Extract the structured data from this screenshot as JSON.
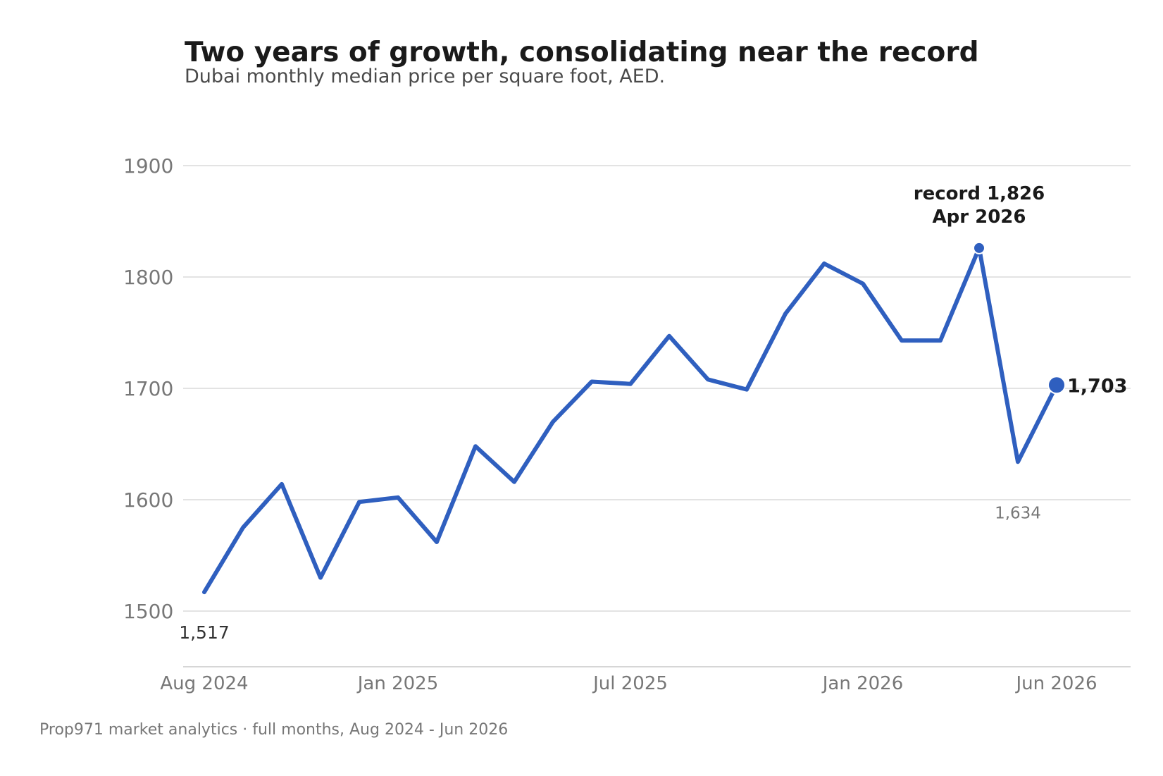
{
  "chart_data": {
    "type": "line",
    "title": "Two years of growth, consolidating near the record",
    "subtitle": "Dubai monthly median price per square foot, AED.",
    "footer": "Prop971 market analytics  ·  full months, Aug 2024 - Jun 2026",
    "colors": {
      "series": "#2f5fbf"
    },
    "x": [
      "2024-08",
      "2024-09",
      "2024-10",
      "2024-11",
      "2024-12",
      "2025-01",
      "2025-02",
      "2025-03",
      "2025-04",
      "2025-05",
      "2025-06",
      "2025-07",
      "2025-08",
      "2025-09",
      "2025-10",
      "2025-11",
      "2025-12",
      "2026-01",
      "2026-02",
      "2026-03",
      "2026-04",
      "2026-05",
      "2026-06"
    ],
    "series": [
      {
        "values": [
          1517,
          1575,
          1614,
          1530,
          1598,
          1602,
          1562,
          1648,
          1616,
          1670,
          1706,
          1704,
          1747,
          1708,
          1699,
          1767,
          1812,
          1794,
          1743,
          1743,
          1826,
          1634,
          1703
        ]
      }
    ],
    "xticks": [
      {
        "value": "2024-08",
        "label": "Aug 2024"
      },
      {
        "value": "2025-01",
        "label": "Jan 2025"
      },
      {
        "value": "2025-07",
        "label": "Jul 2025"
      },
      {
        "value": "2026-01",
        "label": "Jan 2026"
      },
      {
        "value": "2026-06",
        "label": "Jun 2026"
      }
    ],
    "yticks": [
      1500,
      1600,
      1700,
      1800,
      1900
    ],
    "ylim": [
      1450,
      1950
    ],
    "grid": true,
    "annotations": {
      "start": {
        "x": "2024-08",
        "text": "1,517"
      },
      "low": {
        "x": "2026-05",
        "text": "1,634"
      },
      "record": {
        "x": "2026-04",
        "line1": "record 1,826",
        "line2": "Apr 2026"
      },
      "last": {
        "x": "2026-06",
        "text": "1,703"
      }
    }
  }
}
